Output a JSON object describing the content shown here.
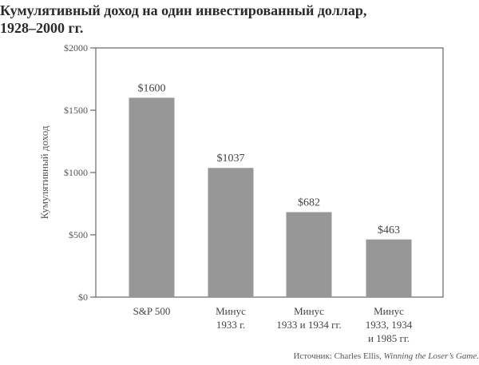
{
  "title_line1": "Кумулятивный доход на один инвестированный доллар,",
  "title_line2": "1928–2000 гг.",
  "source_prefix": "Источник: Charles Ellis, ",
  "source_title": "Winning the Loser’s Game.",
  "chart_data": {
    "type": "bar",
    "title": "Кумулятивный доход на один инвестированный доллар, 1928–2000 гг.",
    "xlabel": "",
    "ylabel": "Кумулятивный доход",
    "ylim": [
      0,
      2000
    ],
    "yticks": [
      0,
      500,
      1000,
      1500,
      2000
    ],
    "ytick_labels": [
      "$0",
      "$500",
      "$1000",
      "$1500",
      "$2000"
    ],
    "categories": [
      [
        "S&P 500"
      ],
      [
        "Минус",
        "1933 г."
      ],
      [
        "Минус",
        "1933 и 1934 гг."
      ],
      [
        "Минус",
        "1933, 1934",
        "и 1985 гг."
      ]
    ],
    "values": [
      1600,
      1037,
      682,
      463
    ],
    "data_labels": [
      "$1600",
      "$1037",
      "$682",
      "$463"
    ],
    "bar_color": "#979797",
    "grid": false
  }
}
